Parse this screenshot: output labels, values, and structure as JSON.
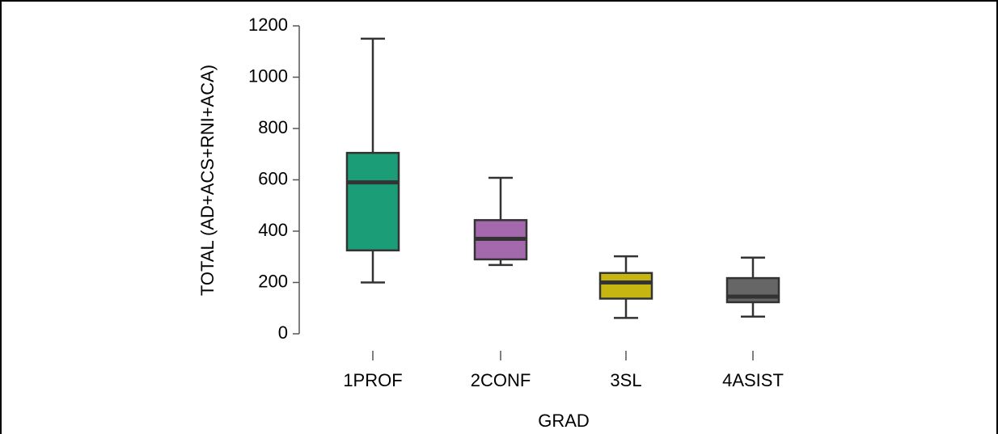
{
  "chart_data": {
    "type": "boxplot",
    "xlabel": "GRAD",
    "ylabel": "TOTAL (AD+ACS+RNI+ACA)",
    "ylim": [
      0,
      1200
    ],
    "yticks": [
      0,
      200,
      400,
      600,
      800,
      1000,
      1200
    ],
    "grid": false,
    "legend": "none",
    "categories": [
      "1PROF",
      "2CONF",
      "3SL",
      "4ASIST"
    ],
    "boxes": [
      {
        "category": "1PROF",
        "min": 200,
        "q1": 325,
        "median": 590,
        "q3": 705,
        "max": 1150,
        "color": "#1b9e77"
      },
      {
        "category": "2CONF",
        "min": 268,
        "q1": 290,
        "median": 370,
        "q3": 443,
        "max": 608,
        "color": "#a468ad"
      },
      {
        "category": "3SL",
        "min": 62,
        "q1": 137,
        "median": 200,
        "q3": 237,
        "max": 302,
        "color": "#c7b612"
      },
      {
        "category": "4ASIST",
        "min": 67,
        "q1": 123,
        "median": 145,
        "q3": 217,
        "max": 297,
        "color": "#666666"
      }
    ]
  }
}
